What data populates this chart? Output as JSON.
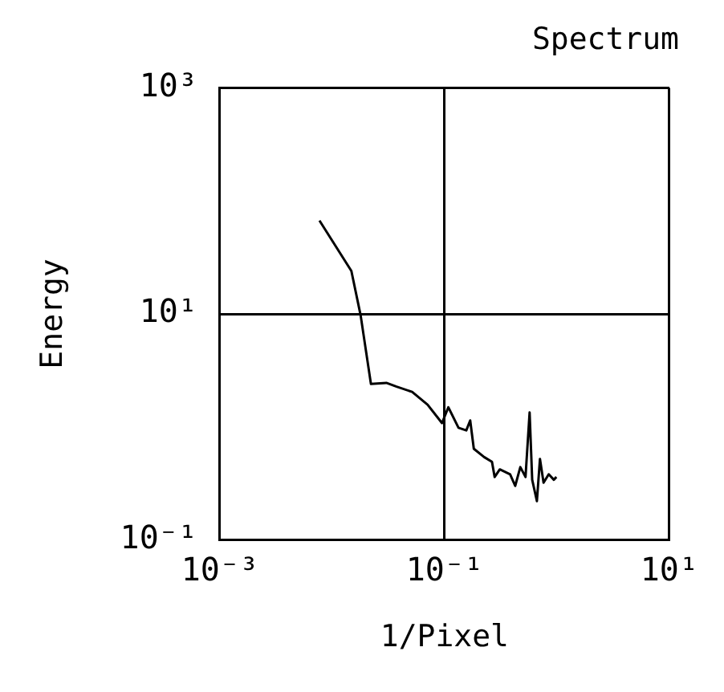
{
  "chart_data": {
    "type": "line",
    "title": "Spectrum",
    "xlabel": "1/Pixel",
    "ylabel": "Energy",
    "log": "xy",
    "grid": true,
    "marker": "none",
    "line_style": "solid",
    "legend": false,
    "x": [
      0.0077,
      0.0148,
      0.0179,
      0.0221,
      0.0303,
      0.0374,
      0.0514,
      0.0706,
      0.0948,
      0.108,
      0.133,
      0.156,
      0.169,
      0.182,
      0.225,
      0.264,
      0.279,
      0.31,
      0.383,
      0.425,
      0.472,
      0.525,
      0.571,
      0.602,
      0.663,
      0.706,
      0.76,
      0.845,
      0.938,
      0.989
    ],
    "series": [
      {
        "color": "#000000",
        "values": [
          67,
          24,
          9.7,
          2.4,
          2.45,
          2.27,
          2.04,
          1.57,
          1.08,
          1.49,
          0.98,
          0.93,
          1.14,
          0.64,
          0.54,
          0.49,
          0.36,
          0.42,
          0.38,
          0.3,
          0.44,
          0.36,
          1.34,
          0.34,
          0.22,
          0.52,
          0.32,
          0.38,
          0.34,
          0.36
        ]
      }
    ],
    "xlim": [
      0.001,
      10
    ],
    "xticks": [
      {
        "value": 0.001,
        "label": "10⁻³"
      },
      {
        "value": 0.1,
        "label": "10⁻¹"
      },
      {
        "value": 10,
        "label": "10¹"
      }
    ],
    "ylim": [
      0.1,
      1000
    ],
    "yticks": [
      {
        "value": 0.1,
        "label": "10⁻¹"
      },
      {
        "value": 10,
        "label": "10¹"
      },
      {
        "value": 1000,
        "label": "10³"
      }
    ]
  }
}
